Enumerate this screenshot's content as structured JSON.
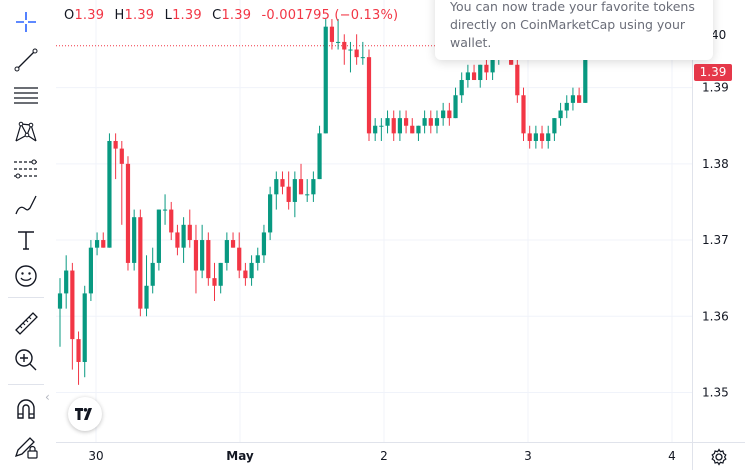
{
  "legend": {
    "o_label": "O",
    "o_value": "1.39",
    "h_label": "H",
    "h_value": "1.39",
    "l_label": "L",
    "l_value": "1.39",
    "c_label": "C",
    "c_value": "1.39",
    "change": "-0.001795 (−0.13%)"
  },
  "toast": {
    "text": "You can now trade your favorite tokens directly on CoinMarketCap using your wallet."
  },
  "current_price_label": "1.39",
  "top_axis_label": "40",
  "colors": {
    "up": "#089981",
    "down": "#f23645",
    "grid": "#f0f3fa",
    "axis_text": "#131722"
  },
  "toolbar": {
    "icons": [
      "crosshair-icon",
      "trend-line-icon",
      "horizontal-lines-icon",
      "pattern-icon",
      "fib-retracement-icon",
      "brush-icon",
      "text-icon",
      "emoji-icon",
      "ruler-icon",
      "zoom-in-icon",
      "magnet-icon",
      "lock-drawing-icon"
    ]
  },
  "chart_data": {
    "type": "candlestick",
    "y_ticks": [
      "1.39",
      "1.38",
      "1.37",
      "1.36",
      "1.35"
    ],
    "x_ticks": [
      "30",
      "May",
      "2",
      "3",
      "4"
    ],
    "ylim": [
      1.3435,
      1.4015
    ],
    "current_price": 1.3955,
    "candles": [
      [
        1.361,
        1.365,
        1.356,
        1.363
      ],
      [
        1.363,
        1.368,
        1.361,
        1.366
      ],
      [
        1.366,
        1.367,
        1.353,
        1.357
      ],
      [
        1.357,
        1.358,
        1.351,
        1.354
      ],
      [
        1.354,
        1.364,
        1.352,
        1.363
      ],
      [
        1.363,
        1.37,
        1.362,
        1.369
      ],
      [
        1.369,
        1.371,
        1.368,
        1.37
      ],
      [
        1.37,
        1.371,
        1.369,
        1.369
      ],
      [
        1.369,
        1.384,
        1.369,
        1.383
      ],
      [
        1.383,
        1.384,
        1.378,
        1.382
      ],
      [
        1.382,
        1.383,
        1.372,
        1.38
      ],
      [
        1.38,
        1.381,
        1.366,
        1.367
      ],
      [
        1.367,
        1.374,
        1.366,
        1.373
      ],
      [
        1.373,
        1.374,
        1.36,
        1.361
      ],
      [
        1.361,
        1.368,
        1.36,
        1.364
      ],
      [
        1.364,
        1.369,
        1.363,
        1.367
      ],
      [
        1.367,
        1.374,
        1.366,
        1.374
      ],
      [
        1.374,
        1.376,
        1.372,
        1.374
      ],
      [
        1.374,
        1.375,
        1.37,
        1.371
      ],
      [
        1.371,
        1.372,
        1.368,
        1.369
      ],
      [
        1.369,
        1.373,
        1.367,
        1.372
      ],
      [
        1.372,
        1.374,
        1.369,
        1.37
      ],
      [
        1.37,
        1.372,
        1.363,
        1.366
      ],
      [
        1.366,
        1.372,
        1.365,
        1.37
      ],
      [
        1.37,
        1.371,
        1.364,
        1.365
      ],
      [
        1.365,
        1.367,
        1.362,
        1.364
      ],
      [
        1.364,
        1.367,
        1.363,
        1.367
      ],
      [
        1.367,
        1.371,
        1.366,
        1.37
      ],
      [
        1.37,
        1.371,
        1.369,
        1.369
      ],
      [
        1.369,
        1.371,
        1.365,
        1.366
      ],
      [
        1.366,
        1.367,
        1.364,
        1.365
      ],
      [
        1.365,
        1.368,
        1.364,
        1.367
      ],
      [
        1.367,
        1.369,
        1.366,
        1.368
      ],
      [
        1.368,
        1.372,
        1.367,
        1.371
      ],
      [
        1.371,
        1.377,
        1.37,
        1.376
      ],
      [
        1.376,
        1.379,
        1.374,
        1.378
      ],
      [
        1.378,
        1.379,
        1.376,
        1.377
      ],
      [
        1.377,
        1.379,
        1.374,
        1.375
      ],
      [
        1.375,
        1.379,
        1.373,
        1.378
      ],
      [
        1.378,
        1.38,
        1.376,
        1.376
      ],
      [
        1.376,
        1.378,
        1.375,
        1.376
      ],
      [
        1.376,
        1.379,
        1.375,
        1.378
      ],
      [
        1.378,
        1.385,
        1.378,
        1.384
      ],
      [
        1.384,
        1.399,
        1.384,
        1.398
      ],
      [
        1.398,
        1.399,
        1.395,
        1.396
      ],
      [
        1.396,
        1.399,
        1.395,
        1.396
      ],
      [
        1.396,
        1.397,
        1.393,
        1.395
      ],
      [
        1.395,
        1.396,
        1.392,
        1.395
      ],
      [
        1.395,
        1.397,
        1.393,
        1.394
      ],
      [
        1.394,
        1.396,
        1.393,
        1.394
      ],
      [
        1.394,
        1.395,
        1.383,
        1.384
      ],
      [
        1.384,
        1.386,
        1.383,
        1.385
      ],
      [
        1.385,
        1.386,
        1.383,
        1.385
      ],
      [
        1.385,
        1.387,
        1.384,
        1.386
      ],
      [
        1.386,
        1.387,
        1.383,
        1.384
      ],
      [
        1.384,
        1.387,
        1.383,
        1.386
      ],
      [
        1.386,
        1.387,
        1.384,
        1.385
      ],
      [
        1.385,
        1.386,
        1.384,
        1.384
      ],
      [
        1.384,
        1.385,
        1.383,
        1.385
      ],
      [
        1.385,
        1.387,
        1.384,
        1.386
      ],
      [
        1.386,
        1.387,
        1.384,
        1.385
      ],
      [
        1.385,
        1.387,
        1.384,
        1.386
      ],
      [
        1.386,
        1.388,
        1.385,
        1.387
      ],
      [
        1.387,
        1.388,
        1.385,
        1.386
      ],
      [
        1.386,
        1.39,
        1.386,
        1.389
      ],
      [
        1.389,
        1.392,
        1.388,
        1.391
      ],
      [
        1.391,
        1.393,
        1.39,
        1.392
      ],
      [
        1.392,
        1.393,
        1.391,
        1.391
      ],
      [
        1.391,
        1.393,
        1.39,
        1.393
      ],
      [
        1.393,
        1.394,
        1.391,
        1.392
      ],
      [
        1.392,
        1.395,
        1.391,
        1.394
      ],
      [
        1.394,
        1.396,
        1.393,
        1.395
      ],
      [
        1.395,
        1.397,
        1.394,
        1.395
      ],
      [
        1.395,
        1.396,
        1.393,
        1.393
      ],
      [
        1.393,
        1.394,
        1.388,
        1.389
      ],
      [
        1.389,
        1.39,
        1.383,
        1.384
      ],
      [
        1.384,
        1.385,
        1.382,
        1.383
      ],
      [
        1.383,
        1.385,
        1.382,
        1.384
      ],
      [
        1.384,
        1.385,
        1.382,
        1.383
      ],
      [
        1.383,
        1.385,
        1.382,
        1.384
      ],
      [
        1.384,
        1.386,
        1.383,
        1.386
      ],
      [
        1.386,
        1.388,
        1.385,
        1.387
      ],
      [
        1.387,
        1.389,
        1.386,
        1.388
      ],
      [
        1.388,
        1.39,
        1.387,
        1.389
      ],
      [
        1.389,
        1.39,
        1.388,
        1.388
      ],
      [
        1.388,
        1.396,
        1.388,
        1.395
      ],
      [
        1.395,
        1.397,
        1.394,
        1.396
      ],
      [
        1.396,
        1.397,
        1.394,
        1.395
      ],
      [
        1.395,
        1.397,
        1.394,
        1.396
      ],
      [
        1.396,
        1.397,
        1.395,
        1.3955
      ]
    ]
  }
}
